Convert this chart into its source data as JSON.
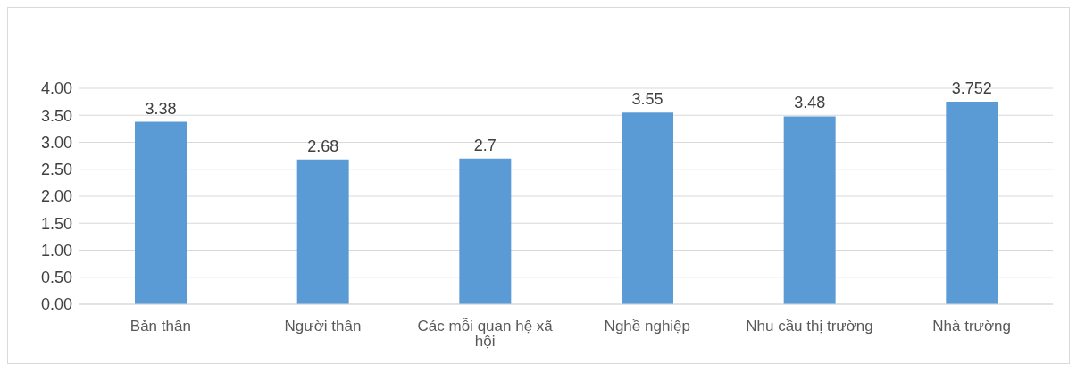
{
  "chart_data": {
    "type": "bar",
    "categories": [
      "Bản thân",
      "Người thân",
      "Các mỗi quan hệ xã hội",
      "Nghề nghiệp",
      "Nhu cầu thị trường",
      "Nhà trường"
    ],
    "values": [
      3.38,
      2.68,
      2.7,
      3.55,
      3.48,
      3.752
    ],
    "color": "#5b9bd5",
    "ylim": [
      0,
      4
    ],
    "yticks": [
      {
        "value": 0,
        "label": "0.00"
      },
      {
        "value": 0.5,
        "label": "0.50"
      },
      {
        "value": 1,
        "label": "1.00"
      },
      {
        "value": 1.5,
        "label": "1.50"
      },
      {
        "value": 2,
        "label": "2.00"
      },
      {
        "value": 2.5,
        "label": "2.50"
      },
      {
        "value": 3,
        "label": "3.00"
      },
      {
        "value": 3.5,
        "label": "3.50"
      },
      {
        "value": 4,
        "label": "4.00"
      }
    ],
    "grid": "y",
    "data_labels": true,
    "legend": false
  }
}
